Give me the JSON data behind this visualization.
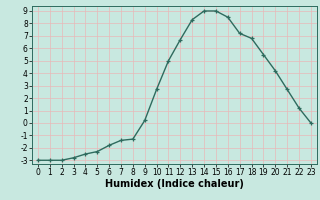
{
  "x": [
    0,
    1,
    2,
    3,
    4,
    5,
    6,
    7,
    8,
    9,
    10,
    11,
    12,
    13,
    14,
    15,
    16,
    17,
    18,
    19,
    20,
    21,
    22,
    23
  ],
  "y": [
    -3,
    -3,
    -3,
    -2.8,
    -2.5,
    -2.3,
    -1.8,
    -1.4,
    -1.3,
    0.2,
    2.7,
    5.0,
    6.7,
    8.3,
    9.0,
    9.0,
    8.5,
    7.2,
    6.8,
    5.5,
    4.2,
    2.7,
    1.2,
    0.0
  ],
  "line_color": "#2e6b5e",
  "marker": "+",
  "bg_color": "#c8e8e0",
  "grid_color": "#e8b8b8",
  "title": "",
  "xlabel": "Humidex (Indice chaleur)",
  "ylabel": "",
  "ylim": [
    -3.3,
    9.4
  ],
  "xlim": [
    -0.5,
    23.5
  ],
  "yticks": [
    -3,
    -2,
    -1,
    0,
    1,
    2,
    3,
    4,
    5,
    6,
    7,
    8,
    9
  ],
  "xticks": [
    0,
    1,
    2,
    3,
    4,
    5,
    6,
    7,
    8,
    9,
    10,
    11,
    12,
    13,
    14,
    15,
    16,
    17,
    18,
    19,
    20,
    21,
    22,
    23
  ],
  "xlabel_fontsize": 7,
  "tick_fontsize": 5.5,
  "linewidth": 1.0,
  "markersize": 3.5
}
